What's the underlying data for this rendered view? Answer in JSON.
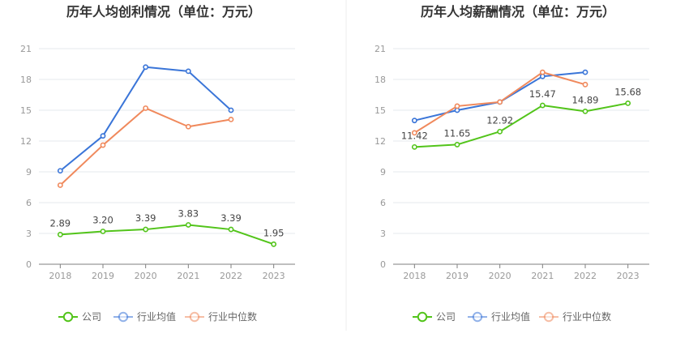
{
  "chart_data": [
    {
      "type": "line",
      "title": "历年人均创利情况（单位：万元）",
      "categories": [
        "2018",
        "2019",
        "2020",
        "2021",
        "2022",
        "2023"
      ],
      "yticks": [
        "0",
        "3",
        "6",
        "9",
        "12",
        "15",
        "18",
        "21"
      ],
      "ylim": [
        0,
        21
      ],
      "grid": true,
      "legend_position": "bottom",
      "series": [
        {
          "name": "公司",
          "color": "#52c41a",
          "values": [
            2.89,
            3.2,
            3.39,
            3.83,
            3.39,
            1.95
          ],
          "labels": [
            "2.89",
            "3.20",
            "3.39",
            "3.83",
            "3.39",
            "1.95"
          ]
        },
        {
          "name": "行业均值",
          "color": "#3a75d8",
          "values": [
            9.1,
            12.5,
            19.2,
            18.8,
            15.0,
            null
          ]
        },
        {
          "name": "行业中位数",
          "color": "#f0895c",
          "values": [
            7.7,
            11.6,
            15.2,
            13.4,
            14.1,
            null
          ]
        }
      ]
    },
    {
      "type": "line",
      "title": "历年人均薪酬情况（单位：万元）",
      "categories": [
        "2018",
        "2019",
        "2020",
        "2021",
        "2022",
        "2023"
      ],
      "yticks": [
        "0",
        "3",
        "6",
        "9",
        "12",
        "15",
        "18",
        "21"
      ],
      "ylim": [
        0,
        21
      ],
      "grid": true,
      "legend_position": "bottom",
      "series": [
        {
          "name": "公司",
          "color": "#52c41a",
          "values": [
            11.42,
            11.65,
            12.92,
            15.47,
            14.89,
            15.68
          ],
          "labels": [
            "11.42",
            "11.65",
            "12.92",
            "15.47",
            "14.89",
            "15.68"
          ]
        },
        {
          "name": "行业均值",
          "color": "#3a75d8",
          "values": [
            14.0,
            15.0,
            15.8,
            18.3,
            18.7,
            null
          ]
        },
        {
          "name": "行业中位数",
          "color": "#f0895c",
          "values": [
            12.8,
            15.4,
            15.8,
            18.7,
            17.5,
            null
          ]
        }
      ]
    }
  ]
}
